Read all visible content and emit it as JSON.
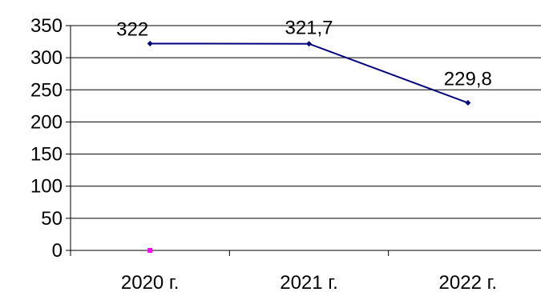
{
  "chart_data": {
    "type": "line",
    "categories": [
      "2020 г.",
      "2021 г.",
      "2022 г."
    ],
    "series": [
      {
        "values": [
          322,
          321.7,
          229.8
        ],
        "data_labels": [
          "322",
          "321,7",
          "229,8"
        ],
        "color": "#000080"
      },
      {
        "values": [
          0,
          null,
          null
        ],
        "color": "#ff00ff"
      }
    ],
    "ylim": [
      0,
      350
    ],
    "yticks": [
      0,
      50,
      100,
      150,
      200,
      250,
      300,
      350
    ],
    "ytick_labels": [
      "0",
      "50",
      "100",
      "150",
      "200",
      "250",
      "300",
      "350"
    ],
    "grid": "horizontal",
    "legend": "none",
    "title": "",
    "xlabel": "",
    "ylabel": ""
  }
}
